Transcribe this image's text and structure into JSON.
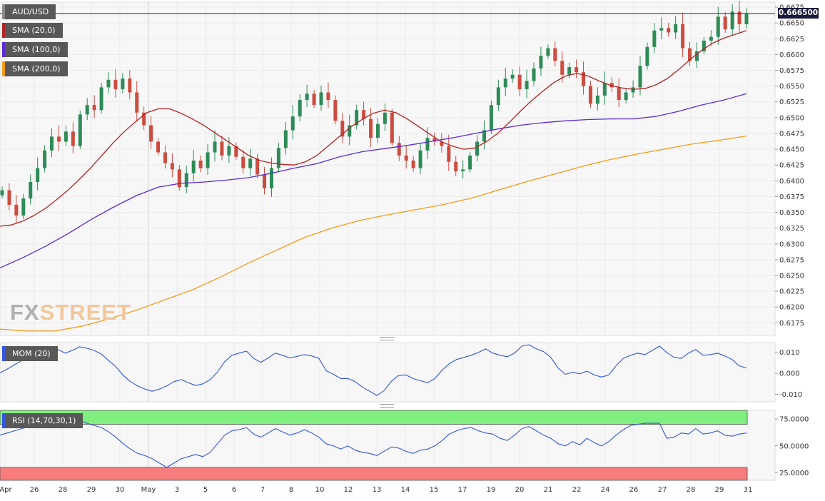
{
  "instrument": {
    "symbol": "AUD/USD",
    "last_price": "0.666500"
  },
  "watermark": {
    "part1": "FX",
    "part2": "STREET"
  },
  "indicators": {
    "sma20": {
      "label": "SMA (20,0)",
      "color": "#b22222"
    },
    "sma100": {
      "label": "SMA (100,0)",
      "color": "#5b2bd6"
    },
    "sma200": {
      "label": "SMA (200,0)",
      "color": "#f59b1a"
    },
    "mom": {
      "label": "MOM (20)",
      "color": "#3355dd"
    },
    "rsi": {
      "label": "RSI (14,70,30,1)",
      "color": "#3355dd"
    }
  },
  "colors": {
    "bull": "#2e8b57",
    "bear": "#cd4b3f",
    "overbought_zone": "#7ff07f",
    "oversold_zone": "#f87c7c",
    "price_line": "#2a2a5a"
  },
  "x_axis": {
    "labels": [
      "Apr",
      "26",
      "28",
      "29",
      "30",
      "May",
      "3",
      "5",
      "6",
      "7",
      "8",
      "10",
      "12",
      "13",
      "14",
      "15",
      "17",
      "19",
      "20",
      "21",
      "22",
      "24",
      "26",
      "27",
      "28",
      "29",
      "31"
    ]
  },
  "chart_data": [
    {
      "type": "candlestick",
      "title": "AUD/USD",
      "y_ticks": [
        0.6675,
        0.665,
        0.6625,
        0.66,
        0.6575,
        0.655,
        0.6525,
        0.65,
        0.6475,
        0.645,
        0.6425,
        0.64,
        0.6375,
        0.635,
        0.6325,
        0.63,
        0.6275,
        0.625,
        0.6225,
        0.62,
        0.6175
      ],
      "ylim": [
        0.6155,
        0.6683
      ],
      "last_price": 0.6665,
      "close_series": [
        0.6385,
        0.6362,
        0.6345,
        0.6372,
        0.6398,
        0.642,
        0.6448,
        0.647,
        0.6462,
        0.6478,
        0.6455,
        0.6505,
        0.652,
        0.6512,
        0.6548,
        0.656,
        0.6545,
        0.6562,
        0.654,
        0.6508,
        0.6488,
        0.6462,
        0.6445,
        0.6428,
        0.6418,
        0.639,
        0.6412,
        0.6432,
        0.642,
        0.6445,
        0.6462,
        0.644,
        0.6455,
        0.6438,
        0.642,
        0.6435,
        0.641,
        0.6388,
        0.642,
        0.6452,
        0.648,
        0.6502,
        0.6528,
        0.6538,
        0.652,
        0.654,
        0.6528,
        0.6495,
        0.647,
        0.6488,
        0.6512,
        0.6498,
        0.6468,
        0.649,
        0.6508,
        0.646,
        0.644,
        0.6432,
        0.642,
        0.6448,
        0.6468,
        0.6462,
        0.6455,
        0.643,
        0.6415,
        0.6418,
        0.644,
        0.6462,
        0.648,
        0.652,
        0.6548,
        0.6562,
        0.6568,
        0.6545,
        0.6558,
        0.6578,
        0.6598,
        0.661,
        0.659,
        0.6568,
        0.658,
        0.6572,
        0.655,
        0.6522,
        0.6535,
        0.6555,
        0.6548,
        0.6528,
        0.654,
        0.6548,
        0.6582,
        0.6612,
        0.6638,
        0.6642,
        0.6635,
        0.6648,
        0.661,
        0.659,
        0.6605,
        0.6622,
        0.6628,
        0.666,
        0.664,
        0.6668,
        0.6648,
        0.6665
      ],
      "sma_20": [
        0.6328,
        0.633,
        0.6336,
        0.6345,
        0.6356,
        0.637,
        0.6385,
        0.6402,
        0.642,
        0.644,
        0.646,
        0.6478,
        0.6494,
        0.6508,
        0.6514,
        0.6514,
        0.6507,
        0.6498,
        0.6488,
        0.6476,
        0.6464,
        0.6452,
        0.644,
        0.6432,
        0.6428,
        0.6426,
        0.6425,
        0.643,
        0.644,
        0.6455,
        0.647,
        0.6485,
        0.6497,
        0.6507,
        0.6512,
        0.6508,
        0.6498,
        0.6486,
        0.6474,
        0.6462,
        0.6455,
        0.645,
        0.6452,
        0.6462,
        0.6475,
        0.6492,
        0.651,
        0.6527,
        0.6542,
        0.6556,
        0.6566,
        0.657,
        0.6566,
        0.6558,
        0.6551,
        0.6547,
        0.6545,
        0.6546,
        0.6552,
        0.6562,
        0.6576,
        0.6592,
        0.6606,
        0.6618,
        0.6626,
        0.6632,
        0.6638
      ],
      "sma_100": [
        0.6262,
        0.6278,
        0.6296,
        0.6316,
        0.6338,
        0.6358,
        0.6376,
        0.639,
        0.6396,
        0.6398,
        0.6401,
        0.6405,
        0.6412,
        0.642,
        0.6427,
        0.6438,
        0.6446,
        0.6451,
        0.6456,
        0.6462,
        0.6468,
        0.6475,
        0.6482,
        0.6488,
        0.6492,
        0.6495,
        0.6497,
        0.6498,
        0.6498,
        0.6502,
        0.651,
        0.652,
        0.6528,
        0.6538
      ],
      "sma_200": [
        0.6165,
        0.6162,
        0.6162,
        0.617,
        0.6182,
        0.6196,
        0.6212,
        0.6228,
        0.6248,
        0.627,
        0.629,
        0.631,
        0.6325,
        0.6337,
        0.6346,
        0.6354,
        0.6362,
        0.6372,
        0.6385,
        0.6398,
        0.641,
        0.6422,
        0.6433,
        0.6442,
        0.645,
        0.6458,
        0.6464,
        0.6471
      ]
    },
    {
      "type": "line",
      "title": "MOM (20)",
      "y_ticks": [
        0.01,
        0.0,
        -0.01
      ],
      "ylim": [
        -0.0135,
        0.0145
      ],
      "values": [
        0.0002,
        0.002,
        0.004,
        0.006,
        0.0085,
        0.01,
        0.0115,
        0.0125,
        0.0112,
        0.0095,
        0.0108,
        0.0125,
        0.0118,
        0.0108,
        0.009,
        0.006,
        0.003,
        -0.001,
        -0.004,
        -0.006,
        -0.0075,
        -0.0085,
        -0.0075,
        -0.006,
        -0.004,
        -0.003,
        -0.0045,
        -0.0058,
        -0.005,
        -0.003,
        0.0005,
        0.0055,
        0.0085,
        0.0095,
        0.0105,
        0.007,
        0.0052,
        0.0072,
        0.0095,
        0.0085,
        0.0072,
        0.008,
        0.0088,
        0.0082,
        0.007,
        0.0012,
        -0.0005,
        -0.0025,
        -0.0025,
        -0.004,
        -0.0065,
        -0.0085,
        -0.0105,
        -0.0082,
        -0.0038,
        -0.001,
        -0.0008,
        -0.0025,
        -0.0035,
        -0.0045,
        -0.0025,
        0.0015,
        0.0045,
        0.0065,
        0.0075,
        0.0085,
        0.0098,
        0.0115,
        0.0095,
        0.0085,
        0.0078,
        0.0095,
        0.0128,
        0.0135,
        0.0115,
        0.0102,
        0.0075,
        0.0025,
        -0.0005,
        0.0005,
        -0.0003,
        0.001,
        -0.0008,
        -0.0018,
        -0.0008,
        0.0035,
        0.007,
        0.0085,
        0.0095,
        0.0088,
        0.0108,
        0.0128,
        0.0098,
        0.0075,
        0.007,
        0.0095,
        0.0112,
        0.0085,
        0.0088,
        0.0095,
        0.0082,
        0.0065,
        0.0035,
        0.0025
      ]
    },
    {
      "type": "line",
      "title": "RSI (14,70,30,1)",
      "y_ticks": [
        75.0,
        50.0,
        25.0
      ],
      "ylim": [
        18,
        83
      ],
      "bands": {
        "overbought": 70,
        "oversold": 30
      },
      "values": [
        60,
        62,
        64,
        66,
        68,
        70,
        72,
        74,
        70,
        68,
        72,
        74,
        71,
        69,
        67,
        63,
        58,
        52,
        47,
        43,
        41,
        38,
        34,
        30,
        34,
        38,
        40,
        42,
        40,
        44,
        52,
        60,
        64,
        65,
        67,
        61,
        58,
        62,
        66,
        63,
        60,
        62,
        65,
        62,
        58,
        52,
        50,
        47,
        50,
        46,
        44,
        43,
        41,
        45,
        49,
        48,
        45,
        43,
        46,
        47,
        50,
        55,
        61,
        64,
        66,
        67,
        64,
        62,
        61,
        57,
        55,
        60,
        66,
        68,
        64,
        60,
        57,
        52,
        50,
        54,
        51,
        57,
        53,
        50,
        54,
        60,
        65,
        69,
        70,
        71,
        71,
        71,
        57,
        58,
        62,
        61,
        66,
        61,
        62,
        64,
        60,
        59,
        61,
        62
      ]
    }
  ]
}
